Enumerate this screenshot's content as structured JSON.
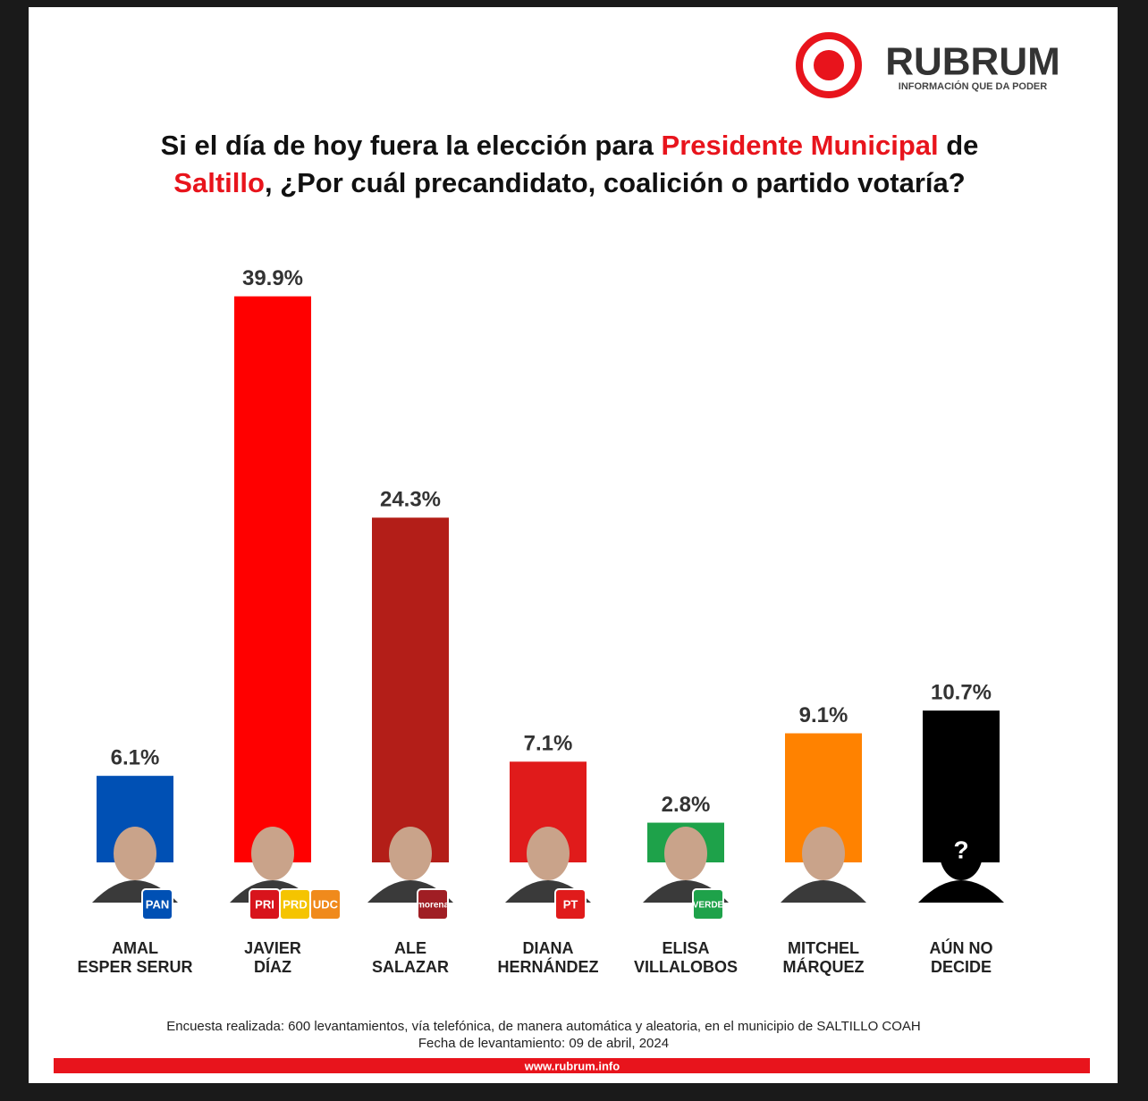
{
  "chart_data": {
    "type": "bar",
    "logo": {
      "name": "RUBRUM",
      "tagline": "INFORMACIÓN QUE DA PODER"
    },
    "title_lines": [
      [
        "Si el día de hoy fuera la elección para ",
        "Presidente Municipal",
        " de"
      ],
      [
        "Saltillo",
        ", ¿Por cuál precandidato, coalición o partido votaría?"
      ]
    ],
    "categories": [
      [
        "AMAL",
        "ESPER SERUR"
      ],
      [
        "JAVIER",
        "DÍAZ"
      ],
      [
        "ALE",
        "SALAZAR"
      ],
      [
        "DIANA",
        "HERNÁNDEZ"
      ],
      [
        "ELISA",
        "VILLALOBOS"
      ],
      [
        "MITCHEL",
        "MÁRQUEZ"
      ],
      [
        "AÚN NO",
        "DECIDE"
      ]
    ],
    "values": [
      6.1,
      39.9,
      24.3,
      7.1,
      2.8,
      9.1,
      10.7
    ],
    "value_labels": [
      "6.1%",
      "39.9%",
      "24.3%",
      "7.1%",
      "2.8%",
      "9.1%",
      "10.7%"
    ],
    "colors": [
      "#0050b4",
      "#ff0000",
      "#b31e18",
      "#e01b1b",
      "#1ea24a",
      "#ff8200",
      "#000000"
    ],
    "parties": [
      [
        "PAN"
      ],
      [
        "PRI",
        "PRD",
        "UDC"
      ],
      [
        "morena"
      ],
      [
        "PT"
      ],
      [
        "VERDE"
      ],
      [],
      [
        "?"
      ]
    ],
    "ylim": [
      0,
      40
    ],
    "notes": [
      "Encuesta realizada: 600 levantamientos, vía telefónica, de manera automática y aleatoria, en el municipio de SALTILLO COAH",
      "Fecha de levantamiento: 09 de abril, 2024"
    ],
    "footer": "www.rubrum.info"
  }
}
